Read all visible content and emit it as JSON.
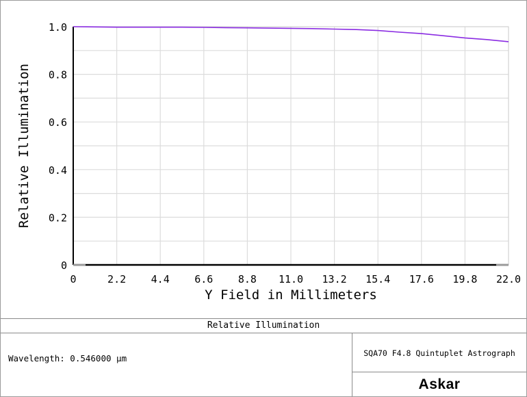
{
  "chart_data": {
    "type": "line",
    "title": "Relative Illumination",
    "xlabel": "Y Field in Millimeters",
    "ylabel": "Relative Illumination",
    "xlim": [
      0,
      22.0
    ],
    "ylim": [
      0,
      1.0
    ],
    "x_ticks": [
      "0",
      "2.2",
      "4.4",
      "6.6",
      "8.8",
      "11.0",
      "13.2",
      "15.4",
      "17.6",
      "19.8",
      "22.0"
    ],
    "y_ticks": [
      "0",
      "0.2",
      "0.4",
      "0.6",
      "0.8",
      "1.0"
    ],
    "grid": true,
    "series": [
      {
        "color": "#8a2be2",
        "x": [
          0,
          1.1,
          2.2,
          3.3,
          4.4,
          5.5,
          6.6,
          7.7,
          8.8,
          9.9,
          11.0,
          12.1,
          13.2,
          14.3,
          15.4,
          16.5,
          17.6,
          18.7,
          19.8,
          20.9,
          22.0
        ],
        "y": [
          1.0,
          0.999,
          0.998,
          0.998,
          0.998,
          0.998,
          0.997,
          0.996,
          0.995,
          0.994,
          0.993,
          0.992,
          0.99,
          0.988,
          0.984,
          0.977,
          0.971,
          0.962,
          0.953,
          0.946,
          0.937
        ]
      }
    ]
  },
  "footer": {
    "title": "Relative Illumination",
    "wavelength": "Wavelength: 0.546000 µm",
    "lens_name": "SQA70 F4.8 Quintuplet Astrograph",
    "logo": "Askar"
  }
}
